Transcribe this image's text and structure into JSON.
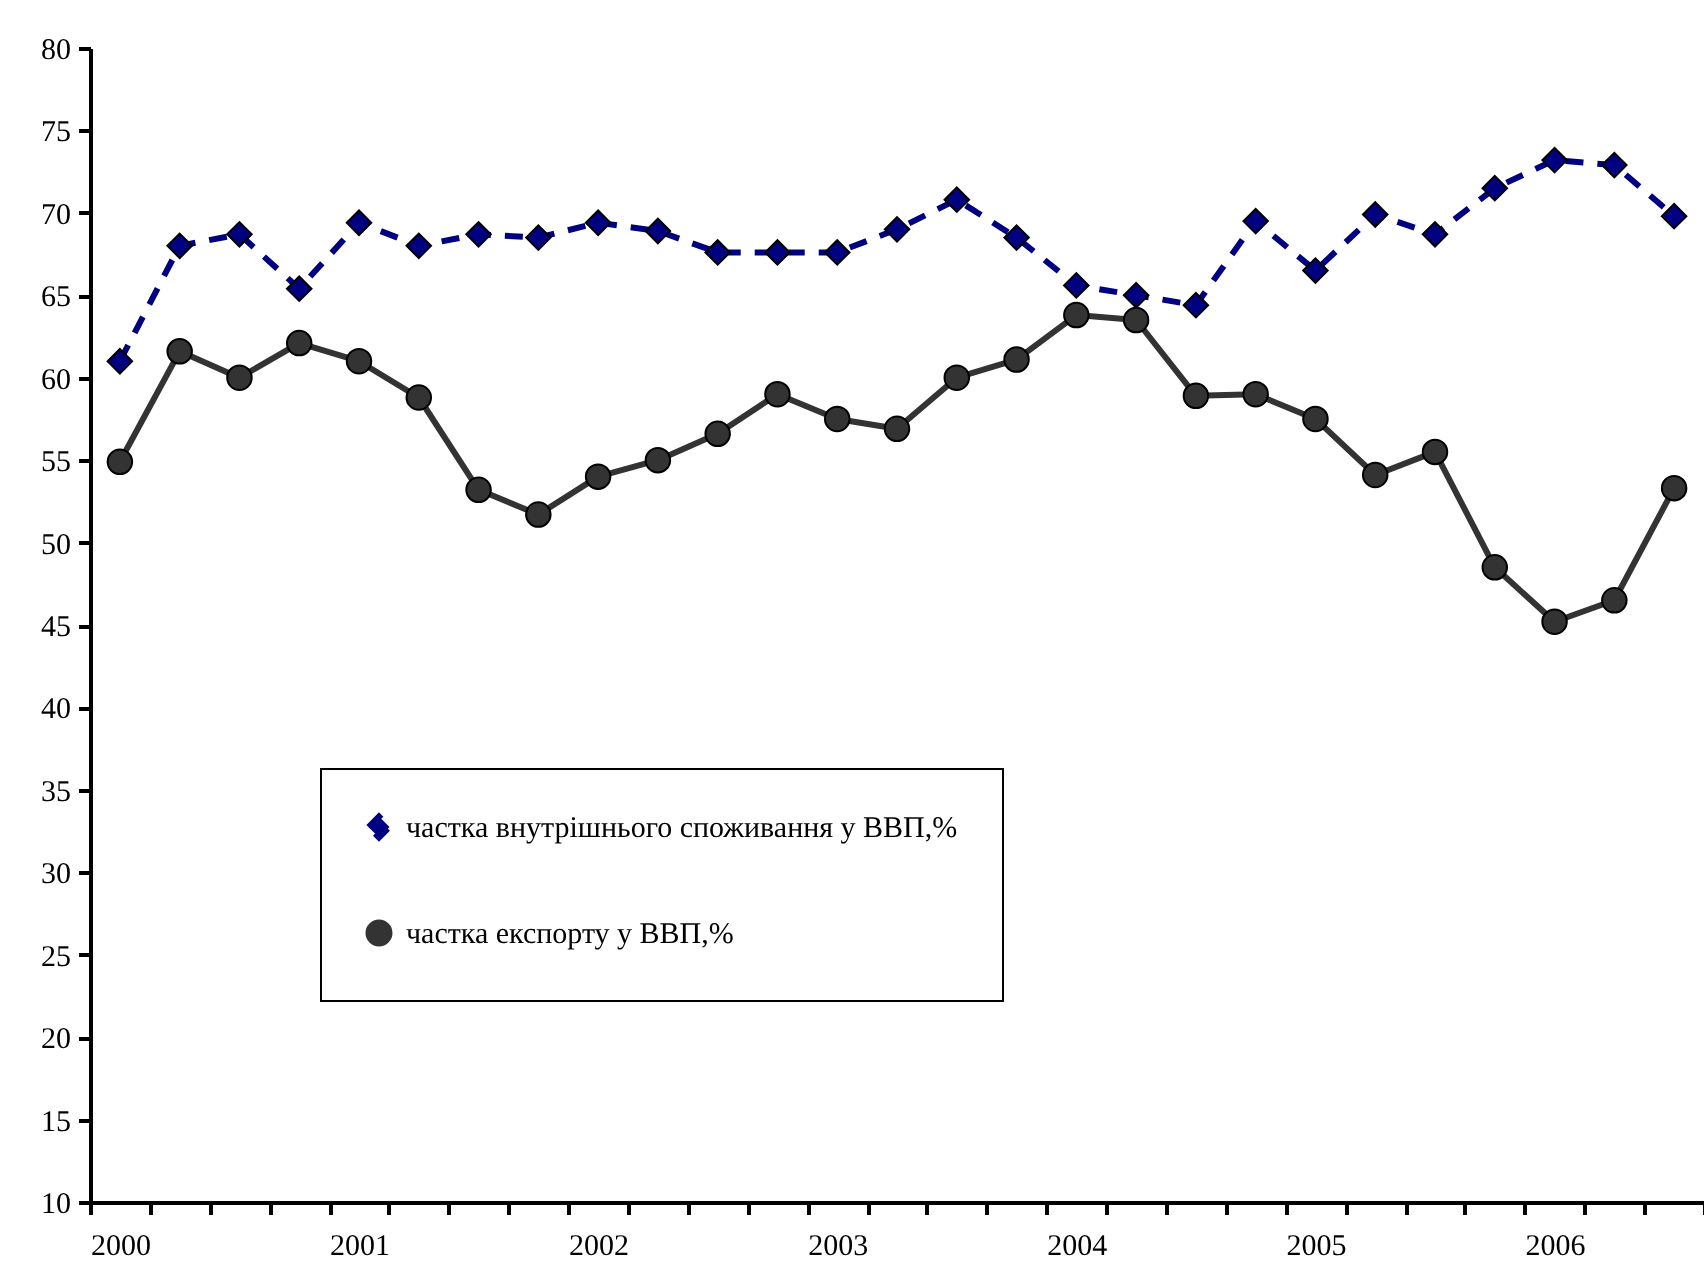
{
  "chart_data": {
    "type": "line",
    "categories": [
      "2000",
      null,
      null,
      null,
      "2001",
      null,
      null,
      null,
      "2002",
      null,
      null,
      null,
      "2003",
      null,
      null,
      null,
      "2004",
      null,
      null,
      null,
      "2005",
      null,
      null,
      null,
      "2006",
      null,
      null
    ],
    "series": [
      {
        "name": "частка внутрішнього споживання у ВВП,%",
        "color": "#000080",
        "marker": "diamond",
        "line_style": "dashed",
        "values": [
          61.0,
          68.0,
          68.7,
          65.4,
          69.4,
          68.0,
          68.7,
          68.5,
          69.4,
          68.9,
          67.6,
          67.6,
          67.6,
          69.0,
          70.8,
          68.5,
          65.6,
          65.0,
          64.4,
          69.5,
          66.5,
          69.9,
          68.7,
          71.5,
          73.2,
          72.9,
          69.8
        ]
      },
      {
        "name": "частка експорту у ВВП,%",
        "color": "#333333",
        "marker": "circle",
        "line_style": "solid",
        "values": [
          54.9,
          61.6,
          60.0,
          62.1,
          61.0,
          58.8,
          53.2,
          51.7,
          54.0,
          55.0,
          56.6,
          59.0,
          57.5,
          56.9,
          60.0,
          61.1,
          63.8,
          63.5,
          58.9,
          59.0,
          57.5,
          54.1,
          55.5,
          48.5,
          45.2,
          46.5,
          53.3
        ]
      }
    ],
    "ylim": [
      10,
      80
    ],
    "yticks": [
      10,
      15,
      20,
      25,
      30,
      35,
      40,
      45,
      50,
      55,
      60,
      65,
      70,
      75,
      80
    ],
    "grid": false,
    "legend": "bottom"
  }
}
